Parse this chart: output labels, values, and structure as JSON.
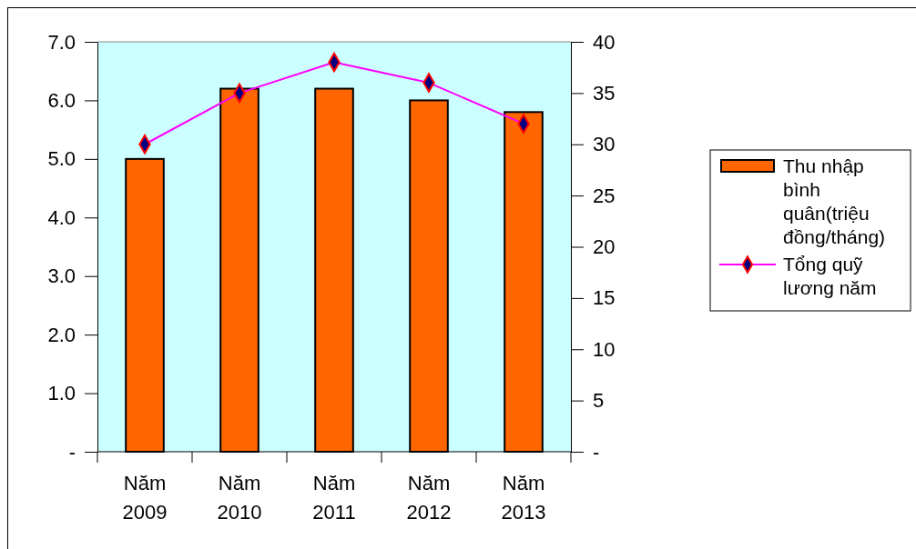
{
  "chart_data": {
    "type": "bar",
    "categories": [
      "Năm 2009",
      "Năm 2010",
      "Năm 2011",
      "Năm 2012",
      "Năm 2013"
    ],
    "series": [
      {
        "name": "Thu nhập bình quân(triệu đồng/tháng)",
        "color": "#ff6600",
        "values": [
          5.0,
          6.2,
          6.2,
          6.0,
          5.8
        ]
      },
      {
        "name": "Tổng quỹ lương năm",
        "type": "line",
        "axis": "y2",
        "color": "#ff00ff",
        "marker": "diamond",
        "values": [
          30,
          35,
          38,
          36,
          32
        ]
      }
    ],
    "ylim": [
      0,
      7
    ],
    "yticks": [
      {
        "value": 0,
        "label": "-"
      },
      {
        "value": 1,
        "label": "1.0"
      },
      {
        "value": 2,
        "label": "2.0"
      },
      {
        "value": 3,
        "label": "3.0"
      },
      {
        "value": 4,
        "label": "4.0"
      },
      {
        "value": 5,
        "label": "5.0"
      },
      {
        "value": 6,
        "label": "6.0"
      },
      {
        "value": 7,
        "label": "7.0"
      }
    ],
    "y2lim": [
      0,
      40
    ],
    "y2ticks": [
      {
        "value": 0,
        "label": "-"
      },
      5,
      10,
      15,
      20,
      25,
      30,
      35,
      40
    ],
    "legend": "right",
    "grid": false
  }
}
